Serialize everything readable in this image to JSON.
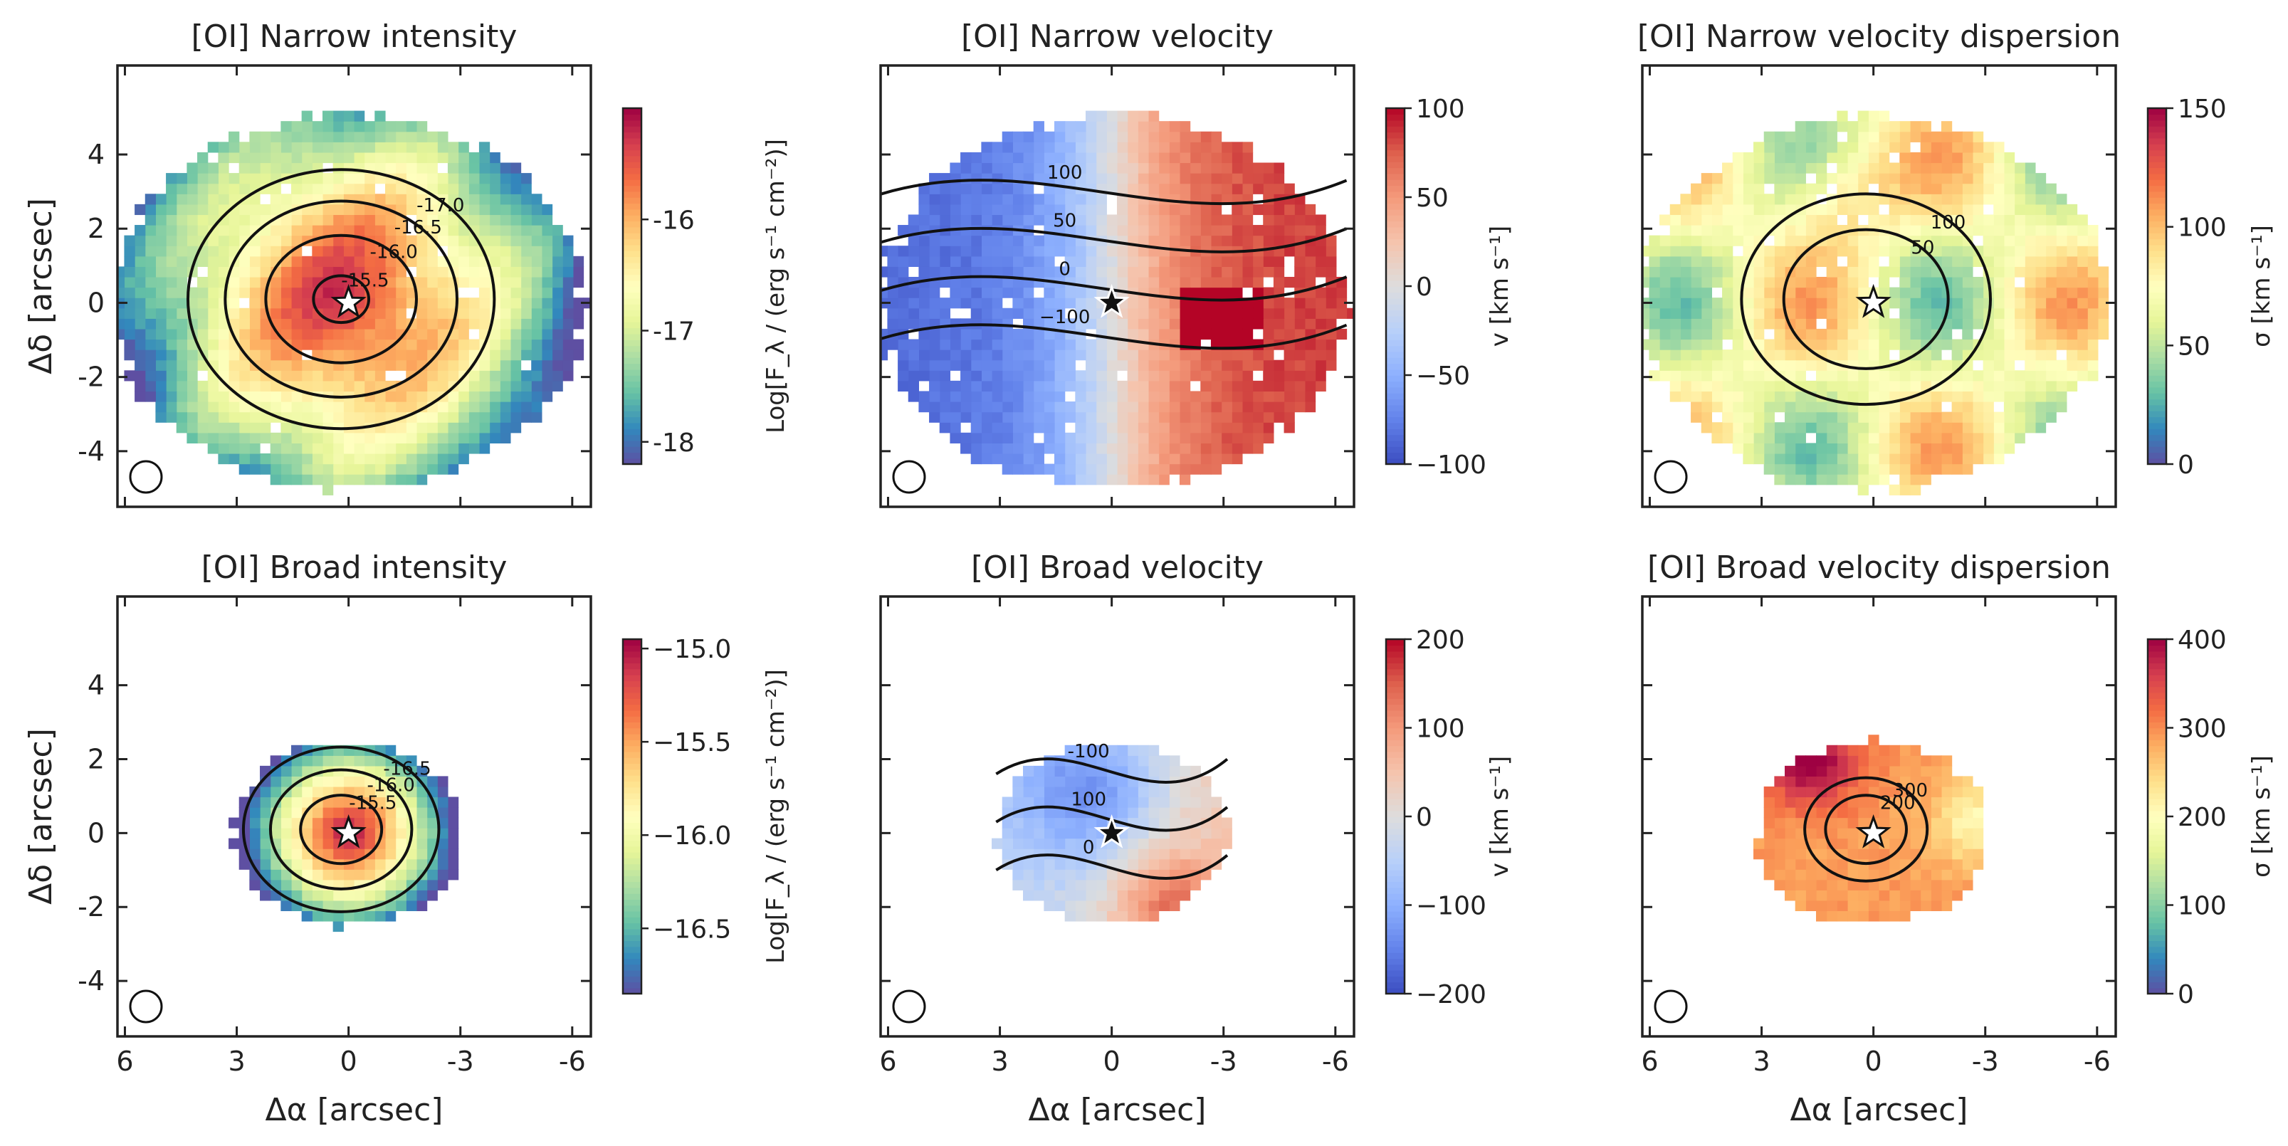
{
  "chart_data": [
    {
      "type": "heatmap",
      "title": "[OI] Narrow intensity",
      "ylabel": "Δδ [arcsec]",
      "xlabel": "",
      "colorbar_label": "Log[F_λ / (erg s⁻¹ cm⁻²)]",
      "colormap": "Spectral_r",
      "clim": [
        -18.2,
        -15.0
      ],
      "colorbar_ticks": [
        "-16",
        "-17",
        "-18"
      ],
      "colorbar_tick_values": [
        -16,
        -17,
        -18
      ],
      "contours": [
        {
          "value": -17.0,
          "label": "-17.0"
        },
        {
          "value": -16.5,
          "label": "-16.5"
        },
        {
          "value": -16.0,
          "label": "-16.0"
        },
        {
          "value": -15.5,
          "label": "-15.5"
        }
      ],
      "peak": -15.3,
      "extent": 6.3,
      "beam": "circle"
    },
    {
      "type": "heatmap",
      "title": "[OI] Narrow velocity",
      "ylabel": "",
      "xlabel": "",
      "colorbar_label": "v [km s⁻¹]",
      "colormap": "coolwarm",
      "clim": [
        -100,
        100
      ],
      "colorbar_ticks": [
        "100",
        "50",
        "0",
        "−50",
        "−100"
      ],
      "colorbar_tick_values": [
        100,
        50,
        0,
        -50,
        -100
      ],
      "contours": [
        {
          "value": -100,
          "label": "−100"
        },
        {
          "value": 0,
          "label": "0"
        },
        {
          "value": 50,
          "label": "50"
        },
        {
          "value": 100,
          "label": "100"
        }
      ],
      "extent": 6.3,
      "beam": "circle"
    },
    {
      "type": "heatmap",
      "title": "[OI] Narrow velocity dispersion",
      "ylabel": "",
      "xlabel": "",
      "colorbar_label": "σ [km s⁻¹]",
      "colormap": "Spectral_r",
      "clim": [
        0,
        150
      ],
      "colorbar_ticks": [
        "150",
        "100",
        "50",
        "0"
      ],
      "colorbar_tick_values": [
        150,
        100,
        50,
        0
      ],
      "contours": [
        {
          "value": 50,
          "label": "50"
        },
        {
          "value": 100,
          "label": "100"
        }
      ],
      "extent": 6.3,
      "beam": "circle"
    },
    {
      "type": "heatmap",
      "title": "[OI] Broad intensity",
      "ylabel": "Δδ [arcsec]",
      "xlabel": "Δα [arcsec]",
      "colorbar_label": "Log[F_λ / (erg s⁻¹ cm⁻²)]",
      "colormap": "Spectral_r",
      "clim": [
        -16.85,
        -14.95
      ],
      "colorbar_ticks": [
        "−15.0",
        "−15.5",
        "−16.0",
        "−16.5"
      ],
      "colorbar_tick_values": [
        -15.0,
        -15.5,
        -16.0,
        -16.5
      ],
      "contours": [
        {
          "value": -16.5,
          "label": "-16.5"
        },
        {
          "value": -16.0,
          "label": "-16.0"
        },
        {
          "value": -15.5,
          "label": "-15.5"
        }
      ],
      "peak": -15.0,
      "extent": 3.1,
      "beam": "circle"
    },
    {
      "type": "heatmap",
      "title": "[OI] Broad velocity",
      "ylabel": "",
      "xlabel": "Δα [arcsec]",
      "colorbar_label": "v [km s⁻¹]",
      "colormap": "coolwarm",
      "clim": [
        -200,
        200
      ],
      "colorbar_ticks": [
        "200",
        "100",
        "0",
        "−100",
        "−200"
      ],
      "colorbar_tick_values": [
        200,
        100,
        0,
        -100,
        -200
      ],
      "contours": [
        {
          "value": 0,
          "label": "0"
        },
        {
          "value": 100,
          "label": "100"
        },
        {
          "value": -100,
          "label": "-100"
        }
      ],
      "extent": 3.1,
      "beam": "circle"
    },
    {
      "type": "heatmap",
      "title": "[OI] Broad velocity dispersion",
      "ylabel": "",
      "xlabel": "Δα [arcsec]",
      "colorbar_label": "σ [km s⁻¹]",
      "colormap": "Spectral_r",
      "clim": [
        0,
        400
      ],
      "colorbar_ticks": [
        "400",
        "300",
        "200",
        "100",
        "0"
      ],
      "colorbar_tick_values": [
        400,
        300,
        200,
        100,
        0
      ],
      "contours": [
        {
          "value": 200,
          "label": "200"
        },
        {
          "value": 300,
          "label": "300"
        }
      ],
      "extent": 3.1,
      "beam": "circle"
    }
  ],
  "axes": {
    "x_ticks": [
      "6",
      "3",
      "0",
      "-3",
      "-6"
    ],
    "x_tick_values": [
      6,
      3,
      0,
      -3,
      -6
    ],
    "y_ticks": [
      "4",
      "2",
      "0",
      "-2",
      "-4"
    ],
    "y_tick_values": [
      4,
      2,
      0,
      -2,
      -4
    ],
    "xlim": [
      6.2,
      -6.5
    ],
    "ylim": [
      -5.5,
      6.4
    ]
  }
}
